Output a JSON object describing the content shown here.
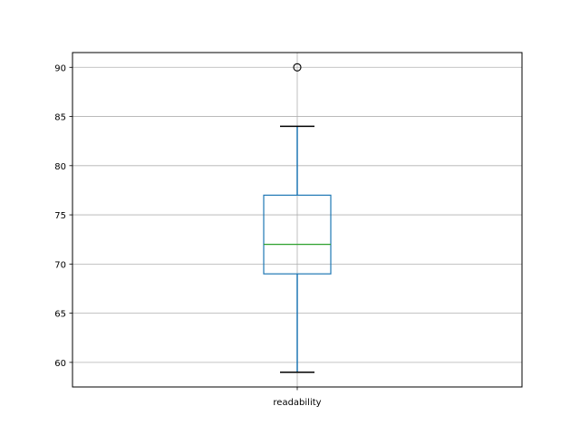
{
  "chart_data": {
    "type": "boxplot",
    "title": "",
    "xlabel": "",
    "ylabel": "",
    "categories": [
      "readability"
    ],
    "boxes": [
      {
        "name": "readability",
        "whisker_low": 59,
        "q1": 69,
        "median": 72,
        "q3": 77,
        "whisker_high": 84,
        "outliers": [
          90
        ]
      }
    ],
    "ylim": [
      57.5,
      91.5
    ],
    "yticks": [
      60,
      65,
      70,
      75,
      80,
      85,
      90
    ],
    "grid": true,
    "colors": {
      "box": "#1f77b4",
      "median": "#2ca02c",
      "whisker_cap": "#000000",
      "grid": "#b0b0b0"
    }
  }
}
